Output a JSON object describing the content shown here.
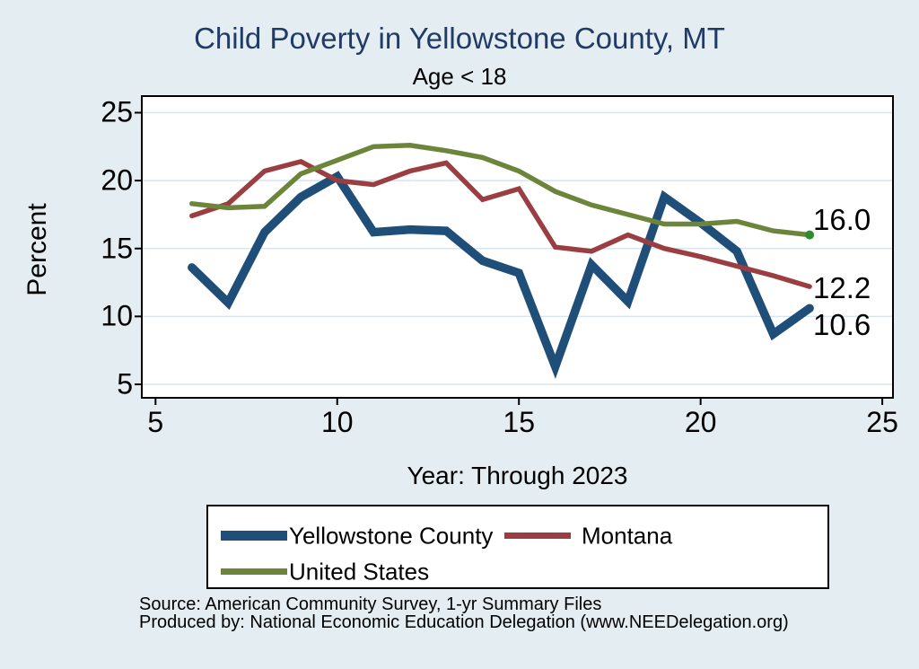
{
  "title": "Child Poverty in Yellowstone County, MT",
  "subtitle": "Age < 18",
  "axes": {
    "y_title": "Percent",
    "x_title": "Year: Through 2023",
    "y_ticks": [
      25,
      20,
      15,
      10,
      5
    ],
    "x_ticks": [
      5,
      10,
      15,
      20,
      25
    ],
    "xlim": [
      5,
      25.3
    ],
    "ylim": [
      4,
      26.2
    ],
    "grid": "horizontal-only"
  },
  "chart_data": {
    "type": "line",
    "x_meaning": "year (2006-2023 shown as 6-23)",
    "x": [
      6,
      7,
      8,
      9,
      10,
      11,
      12,
      13,
      14,
      15,
      16,
      17,
      18,
      19,
      20,
      21,
      22,
      23
    ],
    "series": [
      {
        "name": "Yellowstone County",
        "color": "#1f4e79",
        "stroke_width": 9.5,
        "values": [
          13.6,
          11.0,
          16.2,
          18.8,
          20.3,
          16.2,
          16.4,
          16.3,
          14.1,
          13.2,
          6.3,
          13.8,
          11.1,
          18.8,
          16.9,
          14.8,
          8.7,
          10.6
        ],
        "end_label": "10.6",
        "end_label_dy": 19,
        "end_dot": false
      },
      {
        "name": "Montana",
        "color": "#9b3e42",
        "stroke_width": 5.5,
        "values": [
          17.4,
          18.3,
          20.7,
          21.4,
          20.0,
          19.7,
          20.7,
          21.3,
          18.6,
          19.4,
          15.1,
          14.8,
          16.0,
          15.0,
          14.4,
          13.7,
          13.0,
          12.2
        ],
        "end_label": "12.2",
        "end_label_dy": 2,
        "end_dot": false
      },
      {
        "name": "United States",
        "color": "#6c853a",
        "stroke_width": 5.5,
        "values": [
          18.3,
          18.0,
          18.1,
          20.5,
          21.5,
          22.5,
          22.6,
          22.2,
          21.7,
          20.7,
          19.2,
          18.2,
          17.5,
          16.8,
          16.8,
          17.0,
          16.3,
          16.0
        ],
        "end_label": "16.0",
        "end_label_dy": -17,
        "end_dot": true,
        "end_dot_color": "#2e8b2e"
      }
    ],
    "legend_position": "bottom",
    "plot_bg": "#ffffff",
    "page_bg": "#e4edf2",
    "gridline_color": "#d9e6f0"
  },
  "legend": {
    "entries": [
      {
        "label": "Yellowstone County",
        "series": 0
      },
      {
        "label": "Montana",
        "series": 1
      },
      {
        "label": "United States",
        "series": 2
      }
    ]
  },
  "source_lines": [
    "Source: American Community Survey, 1-yr Summary Files",
    "Produced by: National Economic Education Delegation (www.NEEDelegation.org)"
  ]
}
